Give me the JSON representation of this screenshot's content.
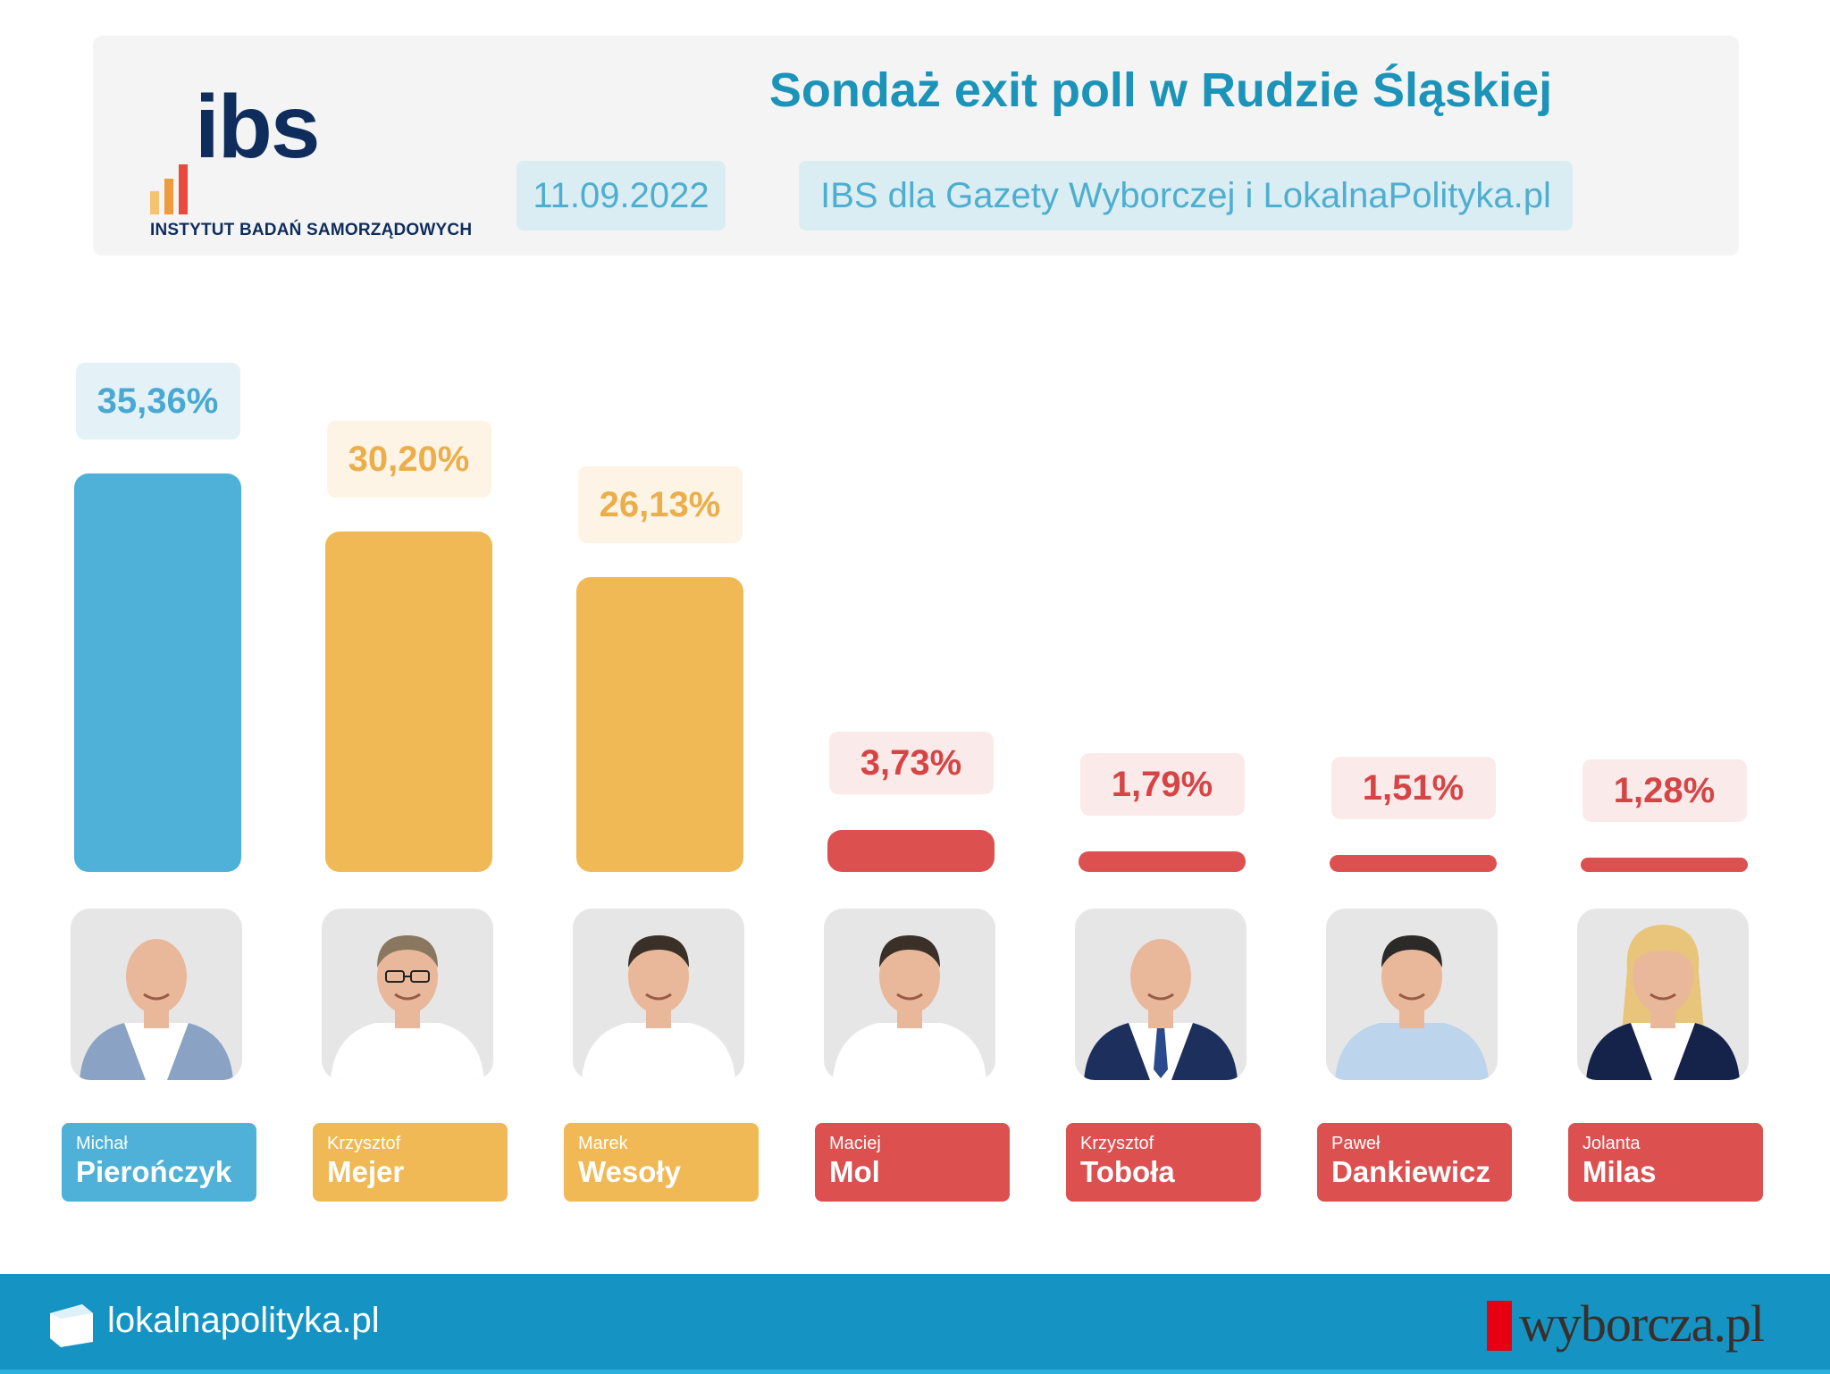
{
  "header": {
    "logo_text": "ibs",
    "logo_subtitle": "INSTYTUT BADAŃ SAMORZĄDOWYCH",
    "title": "Sondaż exit poll w Rudzie Śląskiej",
    "date": "11.09.2022",
    "source": "IBS dla Gazety Wyborczej i LokalnaPolityka.pl"
  },
  "colors": {
    "blue": "#4fb0d8",
    "orange": "#f0b955",
    "red": "#dc5050",
    "blue_label_bg": "#e4f2f8",
    "orange_label_bg": "#fdf4e6",
    "red_label_bg": "#fbeaea",
    "blue_label_text": "#4aa9d2",
    "orange_label_text": "#eaae4a",
    "red_label_text": "#d64545"
  },
  "chart_data": {
    "type": "bar",
    "title": "Sondaż exit poll w Rudzie Śląskiej",
    "categories": [
      "Michał Pierończyk",
      "Krzysztof Mejer",
      "Marek Wesoły",
      "Maciej Mol",
      "Krzysztof Toboła",
      "Paweł Dankiewicz",
      "Jolanta Milas"
    ],
    "values": [
      35.36,
      30.2,
      26.13,
      3.73,
      1.79,
      1.51,
      1.28
    ],
    "value_labels": [
      "35,36%",
      "30,20%",
      "26,13%",
      "3,73%",
      "1,79%",
      "1,51%",
      "1,28%"
    ],
    "bar_colors": [
      "blue",
      "orange",
      "orange",
      "red",
      "red",
      "red",
      "red"
    ],
    "ylim": [
      0,
      35.36
    ]
  },
  "candidates": [
    {
      "first": "Michał",
      "last": "Pierończyk",
      "color": "blue",
      "photo": "man-in-blue-blazer"
    },
    {
      "first": "Krzysztof",
      "last": "Mejer",
      "color": "orange",
      "photo": "man-with-glasses"
    },
    {
      "first": "Marek",
      "last": "Wesoły",
      "color": "orange",
      "photo": "man-in-white-shirt"
    },
    {
      "first": "Maciej",
      "last": "Mol",
      "color": "red",
      "photo": "man-in-white-shirt"
    },
    {
      "first": "Krzysztof",
      "last": "Toboła",
      "color": "red",
      "photo": "man-in-navy-suit"
    },
    {
      "first": "Paweł",
      "last": "Dankiewicz",
      "color": "red",
      "photo": "man-in-light-blue-shirt"
    },
    {
      "first": "Jolanta",
      "last": "Milas",
      "color": "red",
      "photo": "woman-with-blonde-hair"
    }
  ],
  "footer": {
    "left_text": "lokalnapolityka.pl",
    "right_text": "wyborcza.pl"
  }
}
